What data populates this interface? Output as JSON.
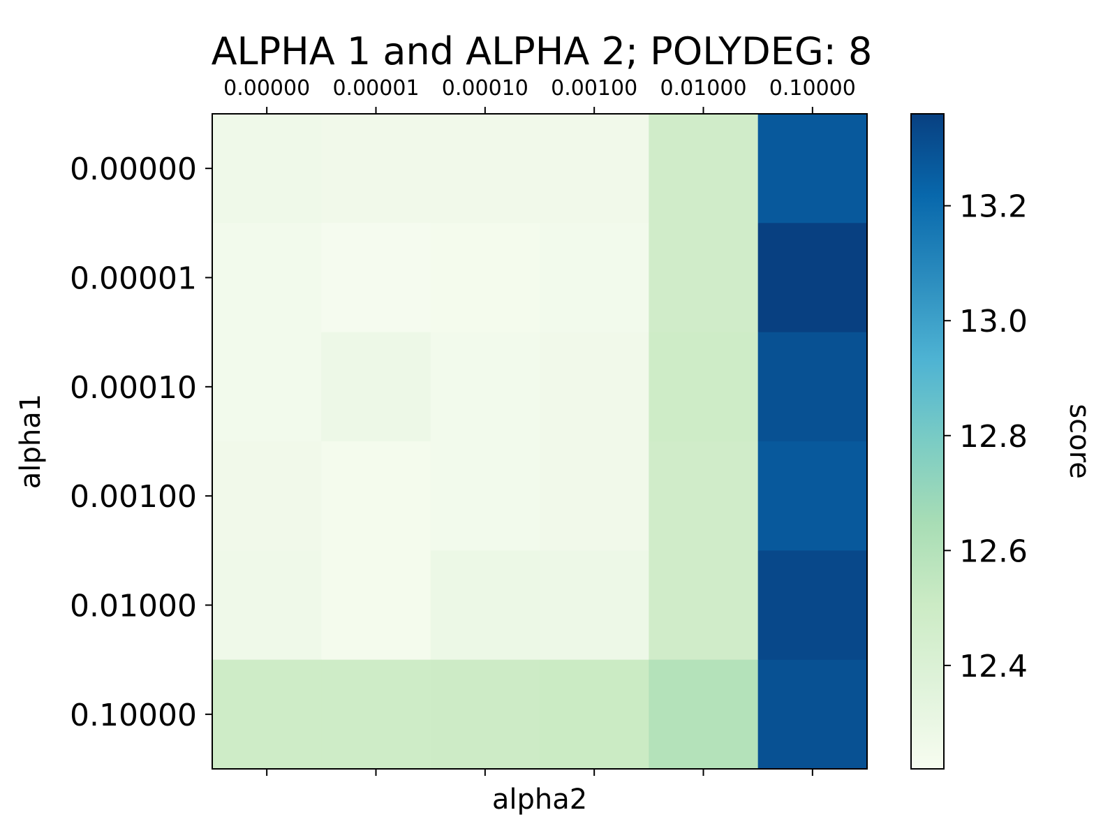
{
  "chart_data": {
    "type": "heatmap",
    "title": "ALPHA 1 and ALPHA 2; POLYDEG: 8",
    "xlabel": "alpha2",
    "ylabel": "alpha1",
    "x_categories": [
      "0.00000",
      "0.00001",
      "0.00010",
      "0.00100",
      "0.01000",
      "0.10000"
    ],
    "y_categories": [
      "0.00000",
      "0.00001",
      "0.00010",
      "0.00100",
      "0.01000",
      "0.10000"
    ],
    "x_tick_position": "top",
    "values": [
      [
        12.27,
        12.26,
        12.26,
        12.26,
        12.48,
        13.27
      ],
      [
        12.25,
        12.23,
        12.24,
        12.25,
        12.48,
        13.36
      ],
      [
        12.25,
        12.28,
        12.25,
        12.26,
        12.49,
        13.3
      ],
      [
        12.26,
        12.24,
        12.25,
        12.26,
        12.48,
        13.27
      ],
      [
        12.27,
        12.24,
        12.29,
        12.28,
        12.48,
        13.33
      ],
      [
        12.49,
        12.49,
        12.5,
        12.51,
        12.6,
        13.3
      ]
    ],
    "colorbar": {
      "label": "score",
      "colormap": "GnBu",
      "vmin": 12.22,
      "vmax": 13.36,
      "ticks": [
        "12.4",
        "12.6",
        "12.8",
        "13.0",
        "13.2"
      ]
    }
  }
}
